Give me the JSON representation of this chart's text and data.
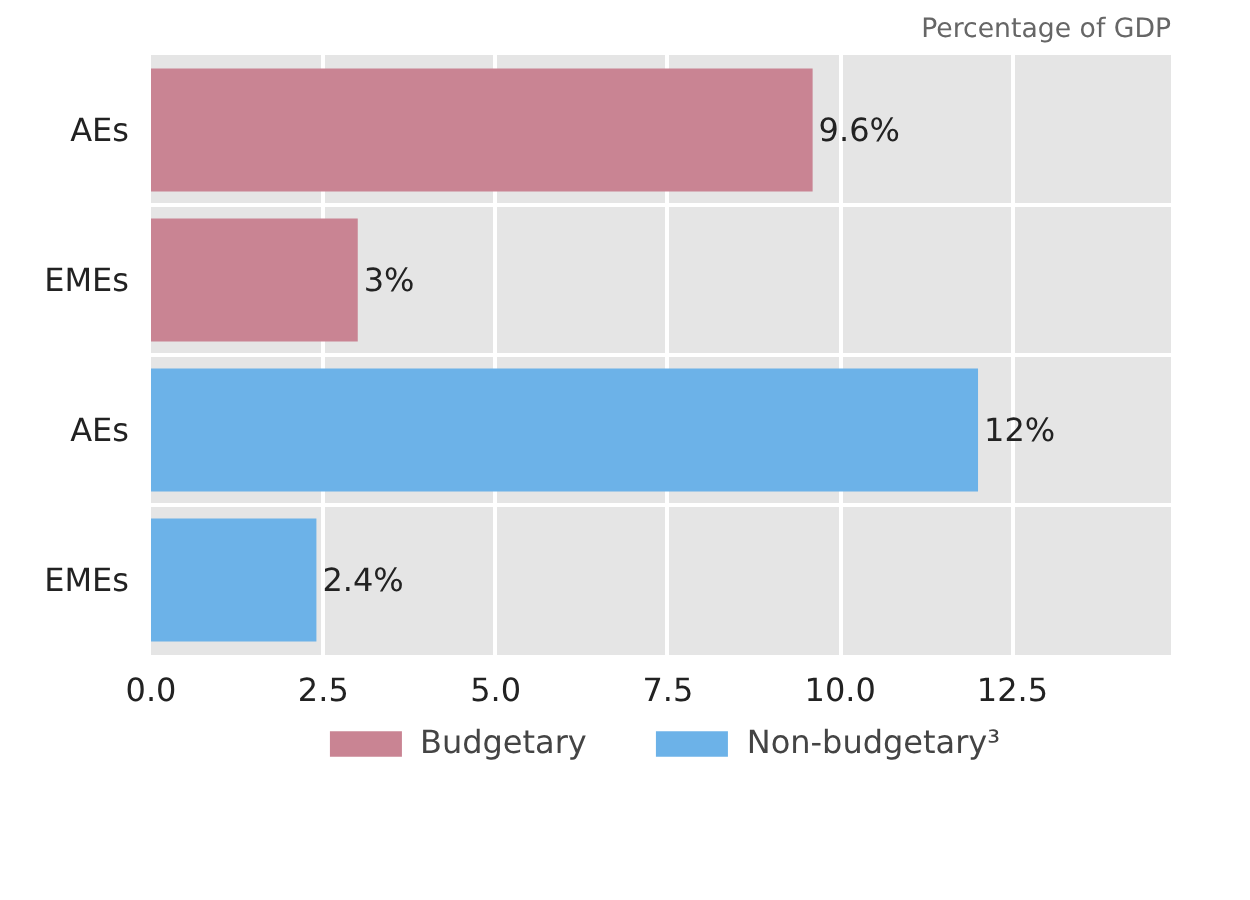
{
  "chart_data": {
    "type": "bar",
    "orientation": "horizontal",
    "categories": [
      "AEs",
      "EMEs",
      "AEs",
      "EMEs"
    ],
    "series": [
      {
        "name": "Budgetary",
        "color": "#c98493",
        "values": [
          9.6,
          3,
          null,
          null
        ],
        "value_labels": [
          "9.6%",
          "3%",
          null,
          null
        ]
      },
      {
        "name": "Non-budgetary³",
        "color": "#6cb2e8",
        "values": [
          null,
          null,
          12,
          2.4
        ],
        "value_labels": [
          null,
          null,
          "12%",
          "2.4%"
        ]
      }
    ],
    "xlim": [
      0,
      14.8
    ],
    "xticks": [
      {
        "value": 0,
        "label": "0.0"
      },
      {
        "value": 2.5,
        "label": "2.5"
      },
      {
        "value": 5,
        "label": "5.0"
      },
      {
        "value": 7.5,
        "label": "7.5"
      },
      {
        "value": 10,
        "label": "10.0"
      },
      {
        "value": 12.5,
        "label": "12.5"
      }
    ],
    "grid": true,
    "legend": "bottom",
    "annotations": [
      "Percentage of GDP"
    ]
  }
}
